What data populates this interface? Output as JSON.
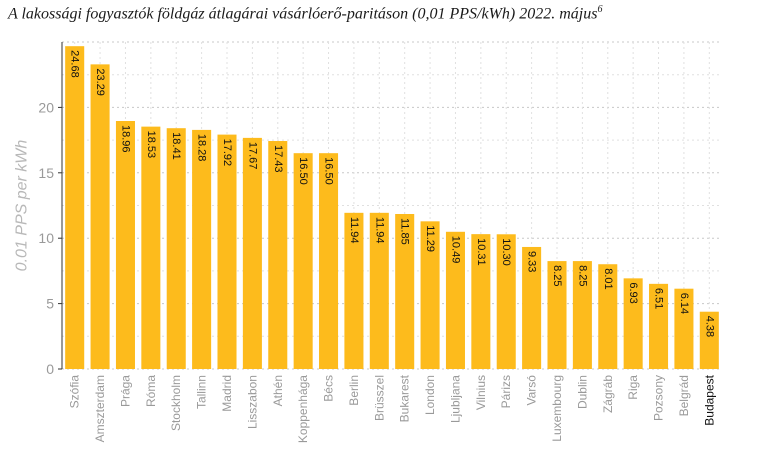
{
  "chart_data": {
    "type": "bar",
    "title": "A lakossági fogyasztók földgáz átlagárai vásárlóerő-paritáson (0,01 PPS/kWh) 2022. május",
    "title_superscript": "6",
    "ylabel": "0.01 PPS per kWh",
    "xlabel": "",
    "ylim": [
      0,
      25
    ],
    "y_ticks": [
      0,
      5,
      10,
      15,
      20
    ],
    "grid": true,
    "legend": "none",
    "bar_color": "#fdbb1c",
    "highlight_category": "Budapest",
    "categories": [
      "Szófia",
      "Amszterdam",
      "Prága",
      "Róma",
      "Stockholm",
      "Tallinn",
      "Madrid",
      "Lisszabon",
      "Athén",
      "Koppenhága",
      "Bécs",
      "Berlin",
      "Brüsszel",
      "Bukarest",
      "London",
      "Ljubljana",
      "Vilnius",
      "Párizs",
      "Varsó",
      "Luxembourg",
      "Dublin",
      "Zágráb",
      "Riga",
      "Pozsony",
      "Belgrád",
      "Budapest"
    ],
    "values": [
      24.68,
      23.29,
      18.96,
      18.53,
      18.41,
      18.28,
      17.92,
      17.67,
      17.43,
      16.5,
      16.5,
      11.94,
      11.94,
      11.85,
      11.29,
      10.49,
      10.31,
      10.3,
      9.33,
      8.25,
      8.25,
      8.01,
      6.93,
      6.51,
      6.14,
      4.38
    ],
    "value_labels": [
      "24.68",
      "23.29",
      "18.96",
      "18.53",
      "18.41",
      "18.28",
      "17.92",
      "17.67",
      "17.43",
      "16.50",
      "16.50",
      "11.94",
      "11.94",
      "11.85",
      "11.29",
      "10.49",
      "10.31",
      "10.30",
      "9.33",
      "8.25",
      "8.25",
      "8.01",
      "6.93",
      "6.51",
      "6.14",
      "4.38"
    ]
  }
}
